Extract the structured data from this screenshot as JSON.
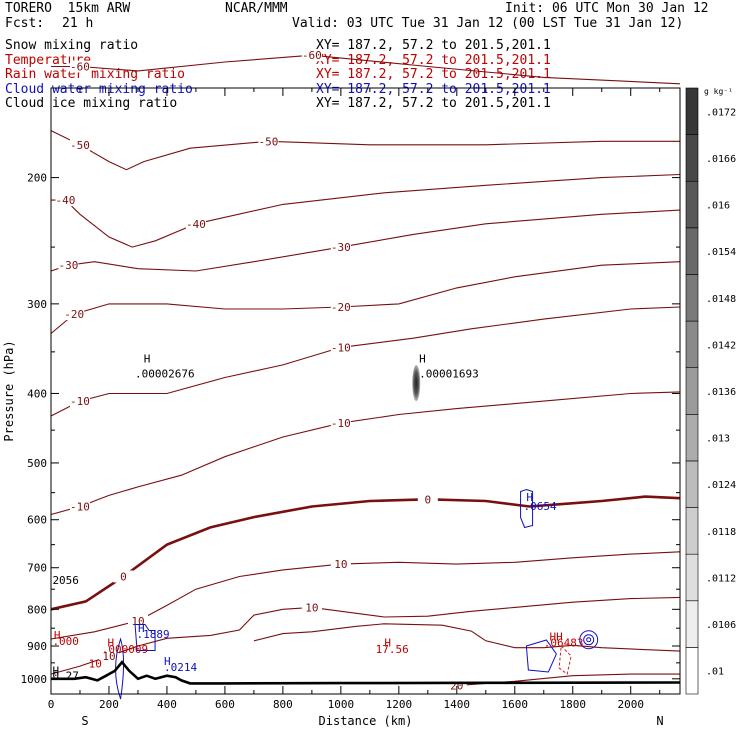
{
  "header": {
    "model": "TORERO  15km ARW",
    "center": "NCAR/MMM",
    "init": "Init: 06 UTC Mon 30 Jan 12",
    "fcst_label": "Fcst:",
    "fcst_value": "21 h",
    "valid": "Valid: 03 UTC Tue 31 Jan 12 (00 LST Tue 31 Jan 12)"
  },
  "fields": [
    {
      "name": "Snow mixing ratio",
      "range": "XY= 187.2, 57.2 to 201.5,201.1",
      "color": "#000000"
    },
    {
      "name": "Temperature",
      "range": "XY= 187.2, 57.2 to 201.5,201.1",
      "color": "#c00000"
    },
    {
      "name": "Rain water mixing ratio",
      "range": "XY= 187.2, 57.2 to 201.5,201.1",
      "color": "#c00000"
    },
    {
      "name": "Cloud water mixing ratio",
      "range": "XY= 187.2, 57.2 to 201.5,201.1",
      "color": "#1010c0"
    },
    {
      "name": "Cloud ice mixing ratio",
      "range": "XY= 187.2, 57.2 to 201.5,201.1",
      "color": "#000000"
    }
  ],
  "chart_data": {
    "type": "line",
    "xlabel": "Distance (km)",
    "ylabel": "Pressure (hPa)",
    "xlim": [
      0,
      2170
    ],
    "ylim": [
      1050,
      150
    ],
    "x_ticks": [
      0,
      200,
      400,
      600,
      800,
      1000,
      1200,
      1400,
      1600,
      1800,
      2000
    ],
    "y_ticks": [
      200,
      300,
      400,
      500,
      600,
      700,
      800,
      900,
      1000
    ],
    "end_labels": {
      "left": "S",
      "right": "N"
    },
    "temperature_contours": [
      {
        "label": "-60",
        "points": [
          [
            0,
            140
          ],
          [
            100,
            140
          ],
          [
            300,
            142
          ],
          [
            600,
            138
          ],
          [
            900,
            135
          ],
          [
            1300,
            140
          ],
          [
            1700,
            145
          ],
          [
            2170,
            148
          ]
        ]
      },
      {
        "label": "-50",
        "points": [
          [
            0,
            172
          ],
          [
            100,
            180
          ],
          [
            200,
            190
          ],
          [
            260,
            195
          ],
          [
            320,
            190
          ],
          [
            480,
            182
          ],
          [
            750,
            178
          ],
          [
            1100,
            180
          ],
          [
            1500,
            180
          ],
          [
            1900,
            178
          ],
          [
            2170,
            178
          ]
        ]
      },
      {
        "label": "-40",
        "points": [
          [
            0,
            215
          ],
          [
            50,
            215
          ],
          [
            100,
            225
          ],
          [
            200,
            242
          ],
          [
            280,
            250
          ],
          [
            360,
            245
          ],
          [
            500,
            232
          ],
          [
            800,
            218
          ],
          [
            1150,
            210
          ],
          [
            1500,
            205
          ],
          [
            1900,
            200
          ],
          [
            2170,
            198
          ]
        ]
      },
      {
        "label": "-30",
        "points": [
          [
            0,
            270
          ],
          [
            60,
            265
          ],
          [
            150,
            262
          ],
          [
            300,
            268
          ],
          [
            500,
            270
          ],
          [
            700,
            262
          ],
          [
            1000,
            250
          ],
          [
            1250,
            240
          ],
          [
            1500,
            232
          ],
          [
            1900,
            225
          ],
          [
            2170,
            222
          ]
        ]
      },
      {
        "label": "-20",
        "points": [
          [
            0,
            330
          ],
          [
            80,
            310
          ],
          [
            200,
            300
          ],
          [
            400,
            300
          ],
          [
            600,
            305
          ],
          [
            800,
            305
          ],
          [
            1000,
            303
          ],
          [
            1200,
            300
          ],
          [
            1400,
            285
          ],
          [
            1600,
            275
          ],
          [
            1900,
            265
          ],
          [
            2170,
            262
          ]
        ]
      },
      {
        "label": "-10",
        "points": [
          [
            0,
            430
          ],
          [
            100,
            410
          ],
          [
            200,
            400
          ],
          [
            400,
            400
          ],
          [
            600,
            380
          ],
          [
            800,
            365
          ],
          [
            1000,
            345
          ],
          [
            1250,
            335
          ],
          [
            1450,
            325
          ],
          [
            1700,
            315
          ],
          [
            2000,
            305
          ],
          [
            2170,
            303
          ]
        ]
      },
      {
        "label": "-10",
        "points": [
          [
            0,
            590
          ],
          [
            100,
            575
          ],
          [
            200,
            555
          ],
          [
            300,
            540
          ],
          [
            450,
            520
          ],
          [
            600,
            490
          ],
          [
            800,
            460
          ],
          [
            1000,
            440
          ],
          [
            1200,
            428
          ],
          [
            1400,
            420
          ],
          [
            1700,
            410
          ],
          [
            2000,
            400
          ],
          [
            2170,
            398
          ]
        ]
      },
      {
        "label": "0",
        "bold": true,
        "points": [
          [
            0,
            800
          ],
          [
            120,
            780
          ],
          [
            250,
            720
          ],
          [
            400,
            650
          ],
          [
            550,
            615
          ],
          [
            700,
            595
          ],
          [
            900,
            575
          ],
          [
            1100,
            565
          ],
          [
            1300,
            562
          ],
          [
            1500,
            565
          ],
          [
            1650,
            575
          ],
          [
            1780,
            570
          ],
          [
            1900,
            565
          ],
          [
            2050,
            557
          ],
          [
            2170,
            560
          ]
        ]
      },
      {
        "label": "10",
        "points": [
          [
            0,
            880
          ],
          [
            150,
            860
          ],
          [
            300,
            830
          ],
          [
            400,
            790
          ],
          [
            500,
            750
          ],
          [
            650,
            720
          ],
          [
            800,
            705
          ],
          [
            1000,
            692
          ],
          [
            1200,
            688
          ],
          [
            1400,
            692
          ],
          [
            1600,
            688
          ],
          [
            1800,
            678
          ],
          [
            2000,
            670
          ],
          [
            2170,
            665
          ]
        ]
      },
      {
        "label": "10",
        "points": [
          [
            0,
            985
          ],
          [
            100,
            960
          ],
          [
            200,
            930
          ],
          [
            300,
            900
          ],
          [
            400,
            878
          ],
          [
            550,
            870
          ],
          [
            650,
            855
          ],
          [
            700,
            815
          ],
          [
            800,
            800
          ],
          [
            900,
            795
          ],
          [
            1050,
            810
          ],
          [
            1150,
            820
          ],
          [
            1300,
            818
          ],
          [
            1450,
            805
          ],
          [
            1600,
            795
          ],
          [
            1800,
            782
          ],
          [
            2000,
            773
          ],
          [
            2170,
            770
          ]
        ]
      },
      {
        "label": "20",
        "points": [
          [
            1400,
            1022
          ],
          [
            1600,
            1008
          ],
          [
            1800,
            990
          ],
          [
            2000,
            985
          ],
          [
            2170,
            985
          ]
        ]
      }
    ],
    "inner_contours": [
      {
        "points": [
          [
            700,
            885
          ],
          [
            800,
            865
          ],
          [
            900,
            860
          ],
          [
            1050,
            845
          ],
          [
            1150,
            838
          ],
          [
            1350,
            842
          ],
          [
            1450,
            858
          ],
          [
            1500,
            885
          ],
          [
            1600,
            905
          ],
          [
            1700,
            905
          ],
          [
            1800,
            898
          ],
          [
            1900,
            905
          ],
          [
            2170,
            915
          ]
        ]
      }
    ],
    "terrain": [
      [
        0,
        1000
      ],
      [
        30,
        1000
      ],
      [
        80,
        1000
      ],
      [
        120,
        995
      ],
      [
        160,
        1005
      ],
      [
        190,
        990
      ],
      [
        220,
        975
      ],
      [
        245,
        948
      ],
      [
        270,
        975
      ],
      [
        300,
        1000
      ],
      [
        330,
        990
      ],
      [
        360,
        1000
      ],
      [
        400,
        990
      ],
      [
        430,
        995
      ],
      [
        450,
        1005
      ],
      [
        480,
        1015
      ],
      [
        600,
        1015
      ],
      [
        1000,
        1014
      ],
      [
        1500,
        1013
      ],
      [
        2170,
        1012
      ]
    ],
    "cloud_ice_max": {
      "x": 1260,
      "p_top": 365,
      "p_bottom": 410
    },
    "labels": [
      {
        "text": "H",
        "x": 320,
        "p": 362,
        "color": "#000000"
      },
      {
        "text": ".00002676",
        "x": 290,
        "p": 380,
        "color": "#000000"
      },
      {
        "text": "H",
        "x": 1270,
        "p": 362,
        "color": "#000000"
      },
      {
        "text": ".00001693",
        "x": 1270,
        "p": 380,
        "color": "#000000"
      },
      {
        "text": "H",
        "x": 1640,
        "p": 565,
        "color": "#1010c0"
      },
      {
        "text": ".0654",
        "x": 1630,
        "p": 582,
        "color": "#1010c0"
      },
      {
        "text": "H",
        "x": 300,
        "p": 860,
        "color": "#1010c0"
      },
      {
        "text": ".1889",
        "x": 295,
        "p": 877,
        "color": "#1010c0"
      },
      {
        "text": "H",
        "x": 390,
        "p": 957,
        "color": "#1010c0"
      },
      {
        "text": ".0214",
        "x": 390,
        "p": 975,
        "color": "#1010c0"
      },
      {
        "text": "H",
        "x": 10,
        "p": 880,
        "color": "#c00000"
      },
      {
        "text": ".000",
        "x": 5,
        "p": 897,
        "color": "#c00000"
      },
      {
        "text": "H",
        "x": 195,
        "p": 902,
        "color": "#c00000"
      },
      {
        "text": ".000009",
        "x": 175,
        "p": 920,
        "color": "#c00000"
      },
      {
        "text": "H",
        "x": 1150,
        "p": 902,
        "color": "#c00000"
      },
      {
        "text": "17.56",
        "x": 1120,
        "p": 920,
        "color": "#c00000"
      },
      {
        "text": "HH",
        "x": 1720,
        "p": 884,
        "color": "#c00000"
      },
      {
        "text": ".06483",
        "x": 1700,
        "p": 902,
        "color": "#c00000"
      },
      {
        "text": "2056",
        "x": 5,
        "p": 738,
        "color": "#000000"
      },
      {
        "text": "0.27",
        "x": 5,
        "p": 1002,
        "color": "#000000"
      },
      {
        "text": "10",
        "x": 130,
        "p": 964,
        "color": "#c00000"
      },
      {
        "text": "H",
        "x": 5,
        "p": 987,
        "color": "#000000"
      }
    ],
    "colorbar": {
      "unit": "g kg⁻¹",
      "values": [
        ".01",
        ".0106",
        ".0112",
        ".0118",
        ".0124",
        ".013",
        ".0136",
        ".0142",
        ".0148",
        ".0154",
        ".016",
        ".0166",
        ".0172"
      ]
    }
  }
}
